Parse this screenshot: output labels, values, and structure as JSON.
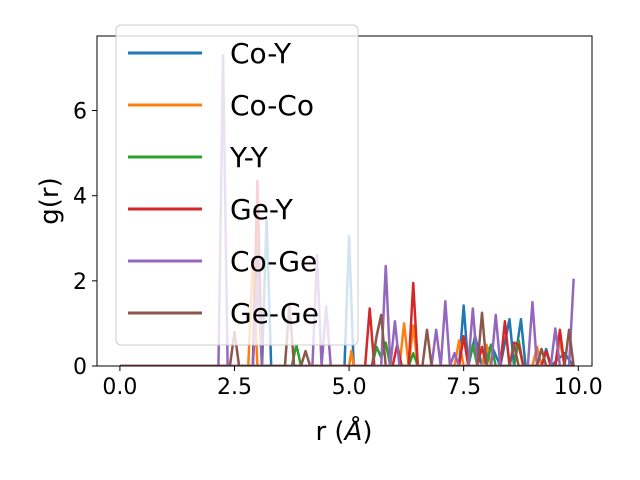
{
  "chart_data": {
    "type": "line",
    "xlabel": "r (",
    "xlabel_unit": "Å",
    "xlabel_close": ")",
    "ylabel": "g(r)",
    "xlim": [
      -0.5,
      10.3
    ],
    "ylim": [
      0,
      7.75
    ],
    "x_ticks": [
      0.0,
      2.5,
      5.0,
      7.5,
      10.0
    ],
    "x_tick_labels": [
      "0.0",
      "2.5",
      "5.0",
      "7.5",
      "10.0"
    ],
    "y_ticks": [
      0,
      2,
      4,
      6
    ],
    "y_tick_labels": [
      "0",
      "2",
      "4",
      "6"
    ],
    "legend_position": "top-left",
    "series": [
      {
        "name": "Co-Y",
        "color": "#1f77b4",
        "points": [
          [
            0,
            0
          ],
          [
            2.9,
            0
          ],
          [
            3.0,
            2.9
          ],
          [
            3.1,
            0
          ],
          [
            3.2,
            3.5
          ],
          [
            3.3,
            0
          ],
          [
            4.9,
            0
          ],
          [
            5.0,
            3.05
          ],
          [
            5.1,
            0
          ],
          [
            7.4,
            0
          ],
          [
            7.5,
            1.42
          ],
          [
            7.6,
            0
          ],
          [
            7.75,
            0.7
          ],
          [
            7.9,
            0
          ],
          [
            8.1,
            0.5
          ],
          [
            8.3,
            0
          ],
          [
            8.5,
            1.1
          ],
          [
            8.6,
            0
          ],
          [
            8.75,
            1.1
          ],
          [
            8.85,
            0
          ],
          [
            9.2,
            0
          ],
          [
            9.3,
            0.4
          ],
          [
            9.4,
            0
          ],
          [
            9.7,
            0.3
          ],
          [
            9.9,
            0
          ]
        ]
      },
      {
        "name": "Co-Co",
        "color": "#ff7f0e",
        "points": [
          [
            0,
            0
          ],
          [
            2.8,
            0
          ],
          [
            2.9,
            2.5
          ],
          [
            3.0,
            0
          ],
          [
            5.0,
            0
          ],
          [
            5.05,
            0.35
          ],
          [
            5.1,
            0
          ],
          [
            6.1,
            0
          ],
          [
            6.2,
            1.0
          ],
          [
            6.3,
            0
          ],
          [
            6.4,
            0.95
          ],
          [
            6.5,
            0
          ],
          [
            7.3,
            0
          ],
          [
            7.4,
            0.6
          ],
          [
            7.5,
            0
          ],
          [
            7.9,
            0
          ],
          [
            8.0,
            0.5
          ],
          [
            8.1,
            0
          ],
          [
            9.0,
            0
          ],
          [
            9.1,
            0.45
          ],
          [
            9.2,
            0
          ],
          [
            9.5,
            0
          ],
          [
            9.6,
            0.6
          ],
          [
            9.7,
            0
          ],
          [
            9.9,
            0
          ]
        ]
      },
      {
        "name": "Y-Y",
        "color": "#2ca02c",
        "points": [
          [
            0,
            0
          ],
          [
            3.75,
            0
          ],
          [
            3.85,
            0.5
          ],
          [
            3.95,
            0
          ],
          [
            5.5,
            0
          ],
          [
            5.6,
            0.45
          ],
          [
            5.7,
            0.2
          ],
          [
            5.8,
            0.55
          ],
          [
            5.9,
            0
          ],
          [
            6.3,
            0
          ],
          [
            6.4,
            0.3
          ],
          [
            6.5,
            0
          ],
          [
            7.6,
            0
          ],
          [
            7.7,
            0.5
          ],
          [
            7.8,
            0
          ],
          [
            8.0,
            0
          ],
          [
            8.1,
            0.5
          ],
          [
            8.2,
            0
          ],
          [
            8.6,
            0
          ],
          [
            8.7,
            0.6
          ],
          [
            8.8,
            0
          ],
          [
            9.9,
            0
          ]
        ]
      },
      {
        "name": "Ge-Y",
        "color": "#d62728",
        "points": [
          [
            0,
            0
          ],
          [
            2.9,
            0
          ],
          [
            3.0,
            4.35
          ],
          [
            3.1,
            0
          ],
          [
            5.35,
            0
          ],
          [
            5.45,
            1.35
          ],
          [
            5.55,
            0
          ],
          [
            5.95,
            0
          ],
          [
            6.05,
            0.5
          ],
          [
            6.15,
            0
          ],
          [
            6.3,
            0
          ],
          [
            6.4,
            1.95
          ],
          [
            6.5,
            0
          ],
          [
            7.4,
            0
          ],
          [
            7.5,
            0.7
          ],
          [
            7.6,
            0
          ],
          [
            7.8,
            0
          ],
          [
            7.9,
            0.45
          ],
          [
            8.0,
            0
          ],
          [
            8.3,
            0
          ],
          [
            8.4,
            1.05
          ],
          [
            8.5,
            0
          ],
          [
            8.6,
            0.55
          ],
          [
            8.7,
            0.5
          ],
          [
            8.8,
            0
          ],
          [
            9.2,
            0
          ],
          [
            9.3,
            0.35
          ],
          [
            9.4,
            0
          ],
          [
            9.5,
            0
          ],
          [
            9.6,
            0.85
          ],
          [
            9.7,
            0
          ],
          [
            9.9,
            0
          ]
        ]
      },
      {
        "name": "Co-Ge",
        "color": "#9467bd",
        "points": [
          [
            0,
            0
          ],
          [
            2.15,
            0
          ],
          [
            2.25,
            7.3
          ],
          [
            2.35,
            0
          ],
          [
            2.9,
            0
          ],
          [
            3.0,
            2.0
          ],
          [
            3.1,
            0
          ],
          [
            4.2,
            0
          ],
          [
            4.3,
            2.6
          ],
          [
            4.4,
            0
          ],
          [
            4.5,
            1.4
          ],
          [
            4.6,
            0
          ],
          [
            5.7,
            0
          ],
          [
            5.8,
            2.35
          ],
          [
            5.9,
            0
          ],
          [
            6.0,
            1.05
          ],
          [
            6.1,
            0
          ],
          [
            6.8,
            0
          ],
          [
            6.9,
            0.85
          ],
          [
            7.0,
            0
          ],
          [
            7.1,
            1.52
          ],
          [
            7.2,
            0
          ],
          [
            7.3,
            0.3
          ],
          [
            7.4,
            0
          ],
          [
            7.6,
            0
          ],
          [
            7.7,
            1.35
          ],
          [
            7.8,
            0
          ],
          [
            8.1,
            0
          ],
          [
            8.2,
            1.2
          ],
          [
            8.3,
            0
          ],
          [
            8.9,
            0
          ],
          [
            9.0,
            1.5
          ],
          [
            9.1,
            0
          ],
          [
            9.4,
            0
          ],
          [
            9.5,
            0.88
          ],
          [
            9.6,
            0
          ],
          [
            9.8,
            0
          ],
          [
            9.9,
            2.05
          ]
        ]
      },
      {
        "name": "Ge-Ge",
        "color": "#8c564b",
        "points": [
          [
            0,
            0
          ],
          [
            2.4,
            0
          ],
          [
            2.5,
            0.8
          ],
          [
            2.6,
            0
          ],
          [
            3.6,
            0
          ],
          [
            3.7,
            1.45
          ],
          [
            3.8,
            0
          ],
          [
            3.95,
            0
          ],
          [
            4.05,
            0.35
          ],
          [
            4.15,
            0
          ],
          [
            5.5,
            0
          ],
          [
            5.6,
            0.7
          ],
          [
            5.7,
            1.2
          ],
          [
            5.8,
            0
          ],
          [
            6.6,
            0
          ],
          [
            6.7,
            0.85
          ],
          [
            6.8,
            0
          ],
          [
            7.8,
            0
          ],
          [
            7.9,
            1.25
          ],
          [
            8.0,
            0
          ],
          [
            8.5,
            0
          ],
          [
            8.6,
            0.5
          ],
          [
            8.7,
            0
          ],
          [
            9.1,
            0
          ],
          [
            9.2,
            0.4
          ],
          [
            9.3,
            0
          ],
          [
            9.7,
            0
          ],
          [
            9.8,
            0.85
          ],
          [
            9.9,
            0
          ]
        ]
      }
    ]
  }
}
